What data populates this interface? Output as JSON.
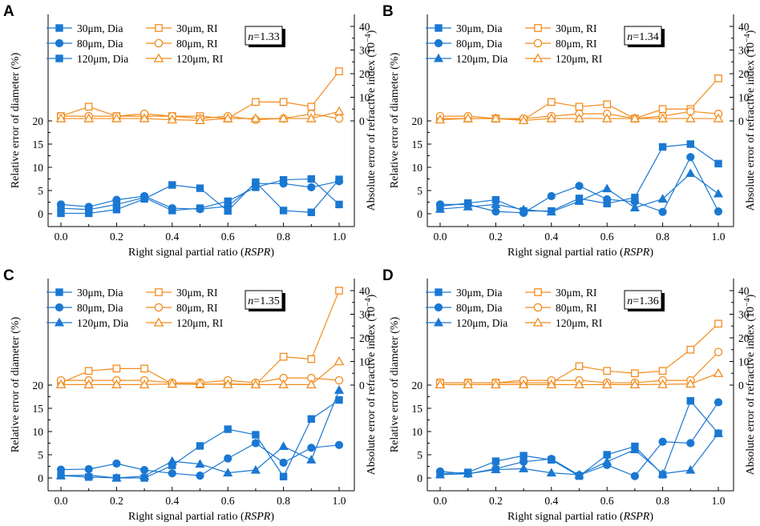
{
  "colors": {
    "dia": "#1a78d2",
    "ri": "#f28c1e"
  },
  "shared": {
    "xlabel_main": "Right signal partial ratio (",
    "xlabel_italic": "RSPR",
    "xlabel_end": ")",
    "ylabel_left": "Relative error of diameter (%)",
    "ylabel_right_main": "Absolute error of refractive index (10",
    "ylabel_right_exp": "−4",
    "ylabel_right_end": ")",
    "n_symbol": "n",
    "x_ticks": [
      "0.0",
      "0.2",
      "0.4",
      "0.6",
      "0.8",
      "1.0"
    ],
    "x_tick_values": [
      0.0,
      0.2,
      0.4,
      0.6,
      0.8,
      1.0
    ]
  },
  "chart_data": [
    {
      "panel": "A",
      "type": "line",
      "n_label": "=1.33",
      "x": [
        0.0,
        0.1,
        0.2,
        0.3,
        0.4,
        0.5,
        0.6,
        0.7,
        0.8,
        0.9,
        1.0
      ],
      "left_axis": {
        "ticks": [
          "0",
          "5",
          "10",
          "15",
          "20"
        ],
        "tick_values": [
          0,
          5,
          10,
          15,
          20
        ],
        "break_above": 20
      },
      "right_axis": {
        "ticks": [
          "0",
          "10",
          "20",
          "30",
          "40"
        ],
        "tick_values": [
          0,
          10,
          20,
          30,
          40
        ]
      },
      "series": [
        {
          "name": "30μm, Dia",
          "axis": "left",
          "marker": "square-filled",
          "values": [
            0.1,
            0.1,
            0.9,
            3.2,
            6.2,
            5.5,
            0.6,
            6.8,
            0.7,
            0.3,
            7.4
          ]
        },
        {
          "name": "80μm, Dia",
          "axis": "left",
          "marker": "circle-filled",
          "values": [
            2.0,
            1.5,
            3.0,
            3.8,
            1.2,
            1.0,
            1.6,
            6.5,
            6.5,
            5.7,
            7.0
          ]
        },
        {
          "name": "120μm, Dia",
          "axis": "left",
          "marker": "square-filled",
          "values": [
            1.2,
            0.9,
            2.0,
            3.5,
            0.7,
            1.2,
            2.7,
            5.7,
            7.3,
            7.5,
            2.0
          ]
        },
        {
          "name": "30μm, RI",
          "axis": "right",
          "marker": "square-open",
          "values": [
            2,
            6,
            2,
            2,
            2,
            2,
            1,
            8,
            8,
            6,
            21
          ]
        },
        {
          "name": "80μm, RI",
          "axis": "right",
          "marker": "circle-open",
          "values": [
            2,
            2,
            2,
            3,
            2,
            1,
            2,
            0.5,
            1,
            3,
            1
          ]
        },
        {
          "name": "120μm, RI",
          "axis": "right",
          "marker": "triangle-open",
          "values": [
            1,
            1,
            1,
            1,
            0.5,
            0.2,
            1,
            1,
            1,
            1,
            4
          ]
        }
      ]
    },
    {
      "panel": "B",
      "type": "line",
      "n_label": "=1.34",
      "x": [
        0.0,
        0.1,
        0.2,
        0.3,
        0.4,
        0.5,
        0.6,
        0.7,
        0.8,
        0.9,
        1.0
      ],
      "left_axis": {
        "ticks": [
          "0",
          "5",
          "10",
          "15",
          "20"
        ],
        "tick_values": [
          0,
          5,
          10,
          15,
          20
        ],
        "break_above": 20
      },
      "right_axis": {
        "ticks": [
          "0",
          "10",
          "20",
          "30",
          "40"
        ],
        "tick_values": [
          0,
          10,
          20,
          30,
          40
        ]
      },
      "series": [
        {
          "name": "30μm, Dia",
          "axis": "left",
          "marker": "square-filled",
          "values": [
            1.6,
            2.3,
            3.0,
            0.6,
            0.6,
            3.3,
            2.2,
            3.5,
            14.4,
            15.0,
            10.8
          ]
        },
        {
          "name": "80μm, Dia",
          "axis": "left",
          "marker": "circle-filled",
          "values": [
            2.0,
            2.0,
            0.5,
            0.2,
            3.8,
            6.0,
            3.1,
            2.6,
            0.4,
            12.2,
            0.5
          ]
        },
        {
          "name": "120μm, Dia",
          "axis": "left",
          "marker": "triangle-filled",
          "values": [
            1.0,
            1.5,
            2.0,
            0.9,
            0.4,
            2.7,
            5.4,
            1.3,
            3.2,
            8.7,
            4.3
          ]
        },
        {
          "name": "30μm, RI",
          "axis": "right",
          "marker": "square-open",
          "values": [
            1,
            1,
            1,
            0.5,
            8,
            6,
            7,
            1,
            5,
            5,
            18
          ]
        },
        {
          "name": "80μm, RI",
          "axis": "right",
          "marker": "circle-open",
          "values": [
            2,
            2,
            1,
            1,
            2,
            3,
            3,
            1,
            2,
            4,
            3
          ]
        },
        {
          "name": "120μm, RI",
          "axis": "right",
          "marker": "triangle-open",
          "values": [
            0.5,
            1,
            1,
            0.2,
            1,
            1,
            1,
            1,
            1,
            1,
            1
          ]
        }
      ]
    },
    {
      "panel": "C",
      "type": "line",
      "n_label": "=1.35",
      "x": [
        0.0,
        0.1,
        0.2,
        0.3,
        0.4,
        0.5,
        0.6,
        0.7,
        0.8,
        0.9,
        1.0
      ],
      "left_axis": {
        "ticks": [
          "0",
          "5",
          "10",
          "15",
          "20"
        ],
        "tick_values": [
          0,
          5,
          10,
          15,
          20
        ],
        "break_above": 20
      },
      "right_axis": {
        "ticks": [
          "0",
          "10",
          "20",
          "30",
          "40"
        ],
        "tick_values": [
          0,
          10,
          20,
          30,
          40
        ]
      },
      "series": [
        {
          "name": "30μm, Dia",
          "axis": "left",
          "marker": "square-filled",
          "values": [
            0.5,
            0.2,
            0.0,
            0.0,
            2.7,
            6.9,
            10.5,
            9.3,
            0.3,
            12.7,
            16.8
          ]
        },
        {
          "name": "80μm, Dia",
          "axis": "left",
          "marker": "circle-filled",
          "values": [
            1.8,
            1.9,
            3.1,
            1.7,
            1.0,
            0.5,
            4.2,
            7.5,
            3.3,
            6.5,
            7.1
          ]
        },
        {
          "name": "120μm, Dia",
          "axis": "left",
          "marker": "triangle-filled",
          "values": [
            0.5,
            0.6,
            0.0,
            0.4,
            3.6,
            3.0,
            1.1,
            1.7,
            6.8,
            3.9,
            18.9
          ]
        },
        {
          "name": "30μm, RI",
          "axis": "right",
          "marker": "square-open",
          "values": [
            1,
            6,
            7,
            7,
            0.5,
            0.3,
            0.5,
            0.3,
            12,
            11,
            40
          ]
        },
        {
          "name": "80μm, RI",
          "axis": "right",
          "marker": "circle-open",
          "values": [
            2,
            2,
            2,
            2,
            1,
            1,
            2,
            1,
            3,
            3,
            2
          ]
        },
        {
          "name": "120μm, RI",
          "axis": "right",
          "marker": "triangle-open",
          "values": [
            0.2,
            0.2,
            0.2,
            0.2,
            0.5,
            0.5,
            0.3,
            0.2,
            0.2,
            0.2,
            10
          ]
        }
      ]
    },
    {
      "panel": "D",
      "type": "line",
      "n_label": "=1.36",
      "x": [
        0.0,
        0.1,
        0.2,
        0.3,
        0.4,
        0.5,
        0.6,
        0.7,
        0.8,
        0.9,
        1.0
      ],
      "left_axis": {
        "ticks": [
          "0",
          "5",
          "10",
          "15",
          "20"
        ],
        "tick_values": [
          0,
          5,
          10,
          15,
          20
        ],
        "break_above": 20
      },
      "right_axis": {
        "ticks": [
          "0",
          "10",
          "20",
          "30",
          "40"
        ],
        "tick_values": [
          0,
          10,
          20,
          30,
          40
        ]
      },
      "series": [
        {
          "name": "30μm, Dia",
          "axis": "left",
          "marker": "square-filled",
          "values": [
            0.9,
            1.2,
            3.6,
            4.8,
            3.9,
            0.4,
            5.0,
            6.8,
            0.7,
            16.6,
            9.6
          ]
        },
        {
          "name": "80μm, Dia",
          "axis": "left",
          "marker": "circle-filled",
          "values": [
            1.4,
            0.9,
            2.0,
            3.5,
            4.1,
            0.6,
            2.8,
            0.4,
            7.8,
            7.5,
            16.3
          ]
        },
        {
          "name": "120μm, Dia",
          "axis": "left",
          "marker": "triangle-filled",
          "values": [
            0.7,
            0.9,
            1.8,
            2.0,
            1.1,
            0.7,
            3.5,
            6.1,
            0.9,
            1.7,
            9.6
          ]
        },
        {
          "name": "30μm, RI",
          "axis": "right",
          "marker": "square-open",
          "values": [
            1,
            1,
            1,
            1,
            1,
            8,
            6,
            5,
            6,
            15,
            26
          ]
        },
        {
          "name": "80μm, RI",
          "axis": "right",
          "marker": "circle-open",
          "values": [
            1,
            1,
            1,
            2,
            2,
            2,
            1,
            1,
            2,
            2,
            14
          ]
        },
        {
          "name": "120μm, RI",
          "axis": "right",
          "marker": "triangle-open",
          "values": [
            0.2,
            0.2,
            0.2,
            0.2,
            0.2,
            0.2,
            0.2,
            0.2,
            0.3,
            0.5,
            5
          ]
        }
      ]
    }
  ]
}
